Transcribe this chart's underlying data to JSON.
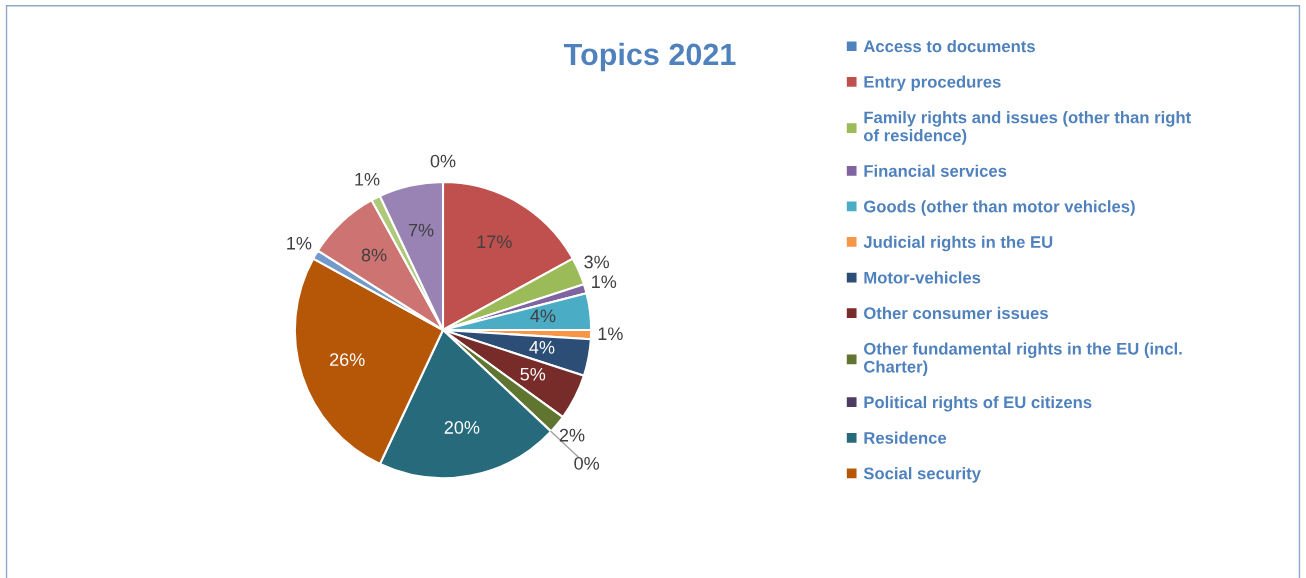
{
  "chart_data": {
    "type": "pie",
    "title": "Topics 2021",
    "categories": [
      "Access to documents",
      "Entry procedures",
      "Family rights and issues (other than right of residence)",
      "Financial services",
      "Goods (other than motor vehicles)",
      "Judicial rights in the EU",
      "Motor-vehicles",
      "Other consumer issues",
      "Other fundamental rights in the EU (incl. Charter)",
      "Political rights of EU citizens",
      "Residence",
      "Social security",
      null,
      null,
      null,
      null
    ],
    "values": [
      0,
      17,
      3,
      1,
      4,
      1,
      4,
      5,
      2,
      0,
      20,
      26,
      1,
      8,
      1,
      7
    ],
    "colors": [
      "#4f81bd",
      "#c0504d",
      "#9bbb59",
      "#8064a2",
      "#4bacc6",
      "#f79646",
      "#2c4d75",
      "#772c2a",
      "#5f7530",
      "#4d3b62",
      "#276a7c",
      "#b65708",
      "#729aca",
      "#cd7371",
      "#afc97a",
      "#9983b5"
    ],
    "value_labels": [
      "0%",
      "17%",
      "3%",
      "1%",
      "4%",
      "1%",
      "4%",
      "5%",
      "2%",
      "0%",
      "20%",
      "26%",
      "1%",
      "8%",
      "1%",
      "7%"
    ],
    "legend": "right"
  }
}
